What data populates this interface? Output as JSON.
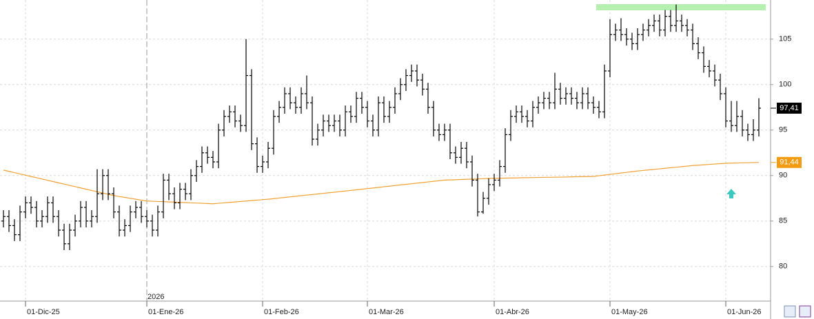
{
  "chart_data": {
    "type": "ohlc",
    "color": "#000000",
    "categories": [
      null,
      null,
      null,
      null,
      "01-Dic-25",
      null,
      null,
      null,
      null,
      null,
      null,
      null,
      null,
      null,
      null,
      null,
      null,
      null,
      null,
      null,
      null,
      null,
      null,
      null,
      null,
      null,
      "01-Ene-26",
      null,
      null,
      null,
      null,
      null,
      null,
      null,
      null,
      null,
      null,
      null,
      null,
      null,
      null,
      null,
      null,
      null,
      null,
      null,
      null,
      "01-Feb-26",
      null,
      null,
      null,
      null,
      null,
      null,
      null,
      null,
      null,
      null,
      null,
      null,
      null,
      null,
      null,
      null,
      null,
      null,
      "01-Mar-26",
      null,
      null,
      null,
      null,
      null,
      null,
      null,
      null,
      null,
      null,
      null,
      null,
      null,
      null,
      null,
      null,
      null,
      null,
      null,
      null,
      null,
      null,
      "01-Abr-26",
      null,
      null,
      null,
      null,
      null,
      null,
      null,
      null,
      null,
      null,
      null,
      null,
      null,
      null,
      null,
      null,
      null,
      null,
      null,
      null,
      "01-May-26",
      null,
      null,
      null,
      null,
      null,
      null,
      null,
      null,
      null,
      null,
      null,
      null,
      null,
      null,
      null,
      null,
      null,
      null,
      null,
      null,
      "01-Jun-26",
      null,
      null,
      null,
      null,
      null,
      null
    ],
    "year_label": "2026",
    "open": [
      85,
      85.5,
      84.5,
      83.5,
      86,
      87,
      86.5,
      85,
      85.5,
      87,
      85.5,
      84,
      82.5,
      84,
      85,
      86.5,
      85,
      85.5,
      88,
      90,
      88,
      86,
      84,
      84.5,
      86,
      86.5,
      85.5,
      85,
      84,
      86,
      89.5,
      88,
      87,
      88.5,
      88,
      90,
      91,
      92.5,
      92,
      91.5,
      95,
      96.5,
      97,
      96,
      95.5,
      101,
      93.5,
      91,
      91.5,
      93,
      96.5,
      97.5,
      99,
      98,
      97.5,
      99,
      98,
      94,
      95,
      96,
      95.5,
      96,
      95,
      97,
      96.5,
      98.5,
      97.5,
      96,
      95,
      98,
      96.5,
      97.5,
      99,
      100,
      101,
      101.5,
      100.5,
      99.5,
      97.5,
      95,
      94.5,
      95,
      92.5,
      92,
      93,
      91.5,
      89.5,
      86,
      87.5,
      89,
      89.5,
      91,
      94.5,
      96.5,
      97,
      96.5,
      96,
      97.5,
      98,
      98.5,
      98,
      99.5,
      98.5,
      99,
      98.5,
      98,
      99,
      98,
      97.5,
      97,
      101.5,
      105.5,
      106,
      105.5,
      105,
      104.5,
      105.5,
      106,
      106.5,
      107,
      106,
      107.5,
      106.5,
      107,
      106.5,
      106,
      104.5,
      103.5,
      102,
      101.5,
      100.5,
      99,
      96,
      95.5,
      96.5,
      95,
      94.5,
      95
    ],
    "high": [
      86.2,
      86.2,
      85.2,
      86.7,
      87.7,
      87.7,
      87.2,
      86.2,
      87.7,
      87.7,
      86.2,
      84.7,
      84.7,
      85.7,
      87.2,
      87.2,
      86.2,
      90.7,
      90.7,
      90.7,
      88.7,
      86.7,
      85.2,
      86.7,
      87.2,
      87.2,
      86.2,
      85.7,
      86.7,
      90.2,
      90.2,
      88.7,
      89.2,
      89.2,
      90.7,
      91.7,
      93.2,
      93.2,
      92.7,
      95.7,
      97.2,
      97.7,
      97.7,
      96.7,
      105,
      101.7,
      94.2,
      92.2,
      93.7,
      97.2,
      98.2,
      99.7,
      99.7,
      98.7,
      99.7,
      101,
      98.7,
      95.7,
      96.7,
      96.7,
      96.7,
      96.7,
      97.7,
      97.7,
      99.2,
      99.2,
      98.2,
      96.7,
      98.7,
      98.7,
      98.2,
      99.7,
      100.7,
      101.7,
      102.2,
      102.2,
      101.2,
      100.2,
      98.2,
      95.7,
      95.7,
      95.7,
      93.2,
      93.7,
      93.7,
      92.2,
      90.2,
      88.2,
      89.7,
      90.2,
      91.7,
      95.2,
      97.2,
      97.7,
      97.7,
      97.2,
      98.2,
      98.7,
      99.2,
      99.2,
      101.3,
      100.2,
      99.7,
      99.7,
      99.2,
      99.7,
      99.7,
      98.7,
      98.2,
      102.2,
      107.2,
      106.7,
      107.3,
      106.2,
      105.7,
      106.2,
      106.7,
      107.2,
      107.7,
      107.7,
      108.2,
      108.2,
      108.8,
      107.7,
      107.2,
      106.7,
      105.2,
      104.2,
      102.7,
      102.2,
      101.2,
      99.7,
      98.2,
      98.2,
      97.2,
      95.7,
      96.2,
      98.5
    ],
    "low": [
      84.3,
      83.8,
      82.8,
      82.8,
      85.3,
      85.8,
      84.3,
      84.3,
      84.8,
      84.8,
      83.3,
      81.8,
      81.8,
      83.3,
      84.3,
      84.3,
      84.3,
      84.8,
      87.3,
      87.3,
      85.3,
      83.3,
      83.3,
      83.8,
      85.3,
      84.8,
      84.3,
      83.3,
      83.3,
      85.3,
      87.3,
      86.3,
      86.3,
      87.3,
      87.3,
      89.3,
      90.3,
      91.3,
      90.8,
      90.8,
      94.3,
      95.8,
      95.3,
      94.8,
      94.8,
      92.8,
      90.3,
      90.3,
      90.8,
      92.3,
      95.8,
      96.8,
      97.3,
      96.8,
      96.8,
      97.3,
      93.3,
      93.3,
      94.3,
      94.8,
      94.8,
      94.3,
      94.3,
      95.8,
      95.8,
      96.8,
      95.3,
      94.3,
      94.3,
      95.8,
      95.8,
      96.8,
      98.3,
      99.3,
      100.3,
      99.8,
      98.8,
      96.8,
      94.3,
      93.8,
      93.8,
      91.8,
      91.3,
      91.3,
      90.8,
      88.8,
      85.5,
      85.8,
      86.8,
      88.3,
      88.8,
      90.3,
      93.8,
      95.8,
      95.8,
      95.3,
      95.3,
      96.8,
      97.3,
      97.3,
      97.3,
      97.8,
      97.8,
      97.8,
      97.3,
      97.3,
      97.3,
      96.8,
      96.3,
      96.3,
      100.8,
      104.8,
      104.8,
      104.3,
      103.8,
      103.8,
      104.8,
      105.3,
      105.8,
      105.3,
      105.3,
      105.8,
      105.8,
      105.8,
      105.3,
      103.8,
      102.8,
      101.3,
      100.8,
      99.8,
      98.3,
      95.3,
      94.8,
      94.8,
      94.3,
      93.8,
      93.8,
      94.3
    ],
    "close": [
      85.5,
      84.5,
      83.5,
      86,
      87,
      86.5,
      85,
      85.5,
      87,
      85.5,
      84,
      82.5,
      84,
      85,
      86.5,
      85,
      85.5,
      88,
      90,
      88,
      86,
      84,
      84.5,
      86,
      86.5,
      85.5,
      85,
      84,
      86,
      89.5,
      88,
      87,
      88.5,
      88,
      90,
      91,
      92.5,
      92,
      91.5,
      95,
      96.5,
      97,
      96,
      95.5,
      101,
      93.5,
      91,
      91.5,
      93,
      96.5,
      97.5,
      99,
      98,
      97.5,
      99,
      98,
      94,
      95,
      96,
      95.5,
      96,
      95,
      97,
      96.5,
      98.5,
      97.5,
      96,
      95,
      98,
      96.5,
      97.5,
      99,
      100,
      101,
      101.5,
      100.5,
      99.5,
      97.5,
      95,
      94.5,
      95,
      92.5,
      92,
      93,
      91.5,
      89.5,
      86,
      87.5,
      89,
      89.5,
      91,
      94.5,
      96.5,
      97,
      96.5,
      96,
      97.5,
      98,
      98.5,
      98,
      99.5,
      98.5,
      99,
      98.5,
      98,
      99,
      98,
      97.5,
      97,
      101.5,
      105.5,
      106,
      105.5,
      105,
      104.5,
      105.5,
      106,
      106.5,
      107,
      106,
      107.5,
      106.5,
      107,
      106.5,
      106,
      104.5,
      103.5,
      102,
      101.5,
      100.5,
      99,
      96,
      95.5,
      96.5,
      95,
      94.5,
      95,
      97.41
    ],
    "moving_average": {
      "color": "#f0a030",
      "values": [
        90.6,
        90.46,
        90.32,
        90.18,
        90.04,
        89.9,
        89.76,
        89.62,
        89.48,
        89.34,
        89.2,
        89.06,
        88.92,
        88.78,
        88.64,
        88.5,
        88.36,
        88.22,
        88.08,
        87.94,
        87.8,
        87.7,
        87.6,
        87.5,
        87.4,
        87.3,
        87.2,
        87.18,
        87.15,
        87.13,
        87.1,
        87.08,
        87.05,
        87.03,
        87.0,
        86.98,
        86.95,
        86.93,
        86.9,
        86.95,
        87.0,
        87.05,
        87.1,
        87.15,
        87.2,
        87.25,
        87.3,
        87.35,
        87.4,
        87.46,
        87.53,
        87.59,
        87.66,
        87.72,
        87.79,
        87.85,
        87.91,
        87.98,
        88.04,
        88.11,
        88.17,
        88.24,
        88.3,
        88.37,
        88.43,
        88.5,
        88.57,
        88.63,
        88.7,
        88.77,
        88.83,
        88.9,
        88.97,
        89.03,
        89.1,
        89.17,
        89.23,
        89.3,
        89.37,
        89.43,
        89.5,
        89.52,
        89.54,
        89.57,
        89.59,
        89.61,
        89.63,
        89.66,
        89.68,
        89.7,
        89.71,
        89.72,
        89.73,
        89.74,
        89.76,
        89.77,
        89.78,
        89.79,
        89.8,
        89.81,
        89.82,
        89.83,
        89.84,
        89.86,
        89.87,
        89.88,
        89.89,
        89.9,
        89.98,
        90.05,
        90.13,
        90.2,
        90.28,
        90.35,
        90.43,
        90.5,
        90.56,
        90.62,
        90.68,
        90.74,
        90.8,
        90.86,
        90.92,
        90.98,
        91.04,
        91.1,
        91.14,
        91.18,
        91.23,
        91.27,
        91.31,
        91.35,
        91.37,
        91.38,
        91.4,
        91.41,
        91.43,
        91.44
      ]
    },
    "price_tags": [
      {
        "value": 97.41,
        "label": "97,41",
        "color": "#000000"
      },
      {
        "value": 91.44,
        "label": "91,44",
        "color": "#f39c12"
      }
    ],
    "ylim": [
      76.2,
      109.3
    ],
    "yticks": [
      80,
      85,
      90,
      95,
      100,
      105
    ],
    "grid": true
  }
}
